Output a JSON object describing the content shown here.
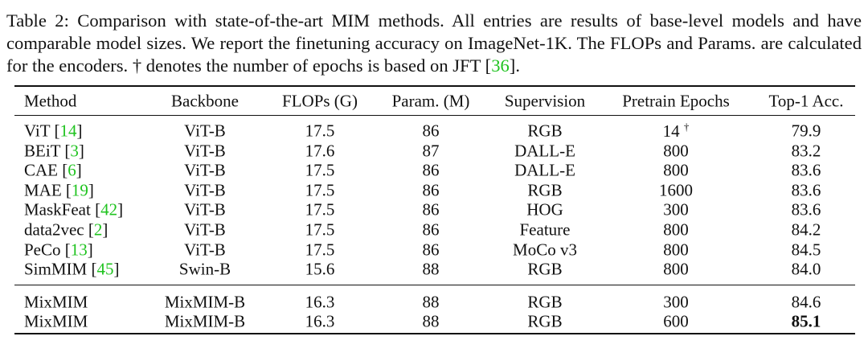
{
  "caption": {
    "label": "Table 2:",
    "text_before": "Comparison with state-of-the-art MIM methods. All entries are results of base-level models and have comparable model sizes. We report the finetuning accuracy on ImageNet-1K. The FLOPs and Params. are calculated for the encoders. † denotes the number of epochs is based on JFT [",
    "ref": "36",
    "text_after": "]."
  },
  "table": {
    "ref_brackets": [
      "[",
      "]"
    ],
    "header": [
      "Method",
      "Backbone",
      "FLOPs (G)",
      "Param. (M)",
      "Supervision",
      "Pretrain Epochs",
      "Top-1 Acc."
    ],
    "groups": [
      [
        {
          "method": "ViT",
          "ref": "14",
          "cells": [
            "ViT-B",
            "17.5",
            "86",
            "RGB",
            "14",
            "79.9"
          ],
          "note": "†"
        },
        {
          "method": "BEiT",
          "ref": "3",
          "cells": [
            "ViT-B",
            "17.6",
            "87",
            "DALL-E",
            "800",
            "83.2"
          ]
        },
        {
          "method": "CAE",
          "ref": "6",
          "cells": [
            "ViT-B",
            "17.5",
            "86",
            "DALL-E",
            "800",
            "83.6"
          ]
        },
        {
          "method": "MAE",
          "ref": "19",
          "cells": [
            "ViT-B",
            "17.5",
            "86",
            "RGB",
            "1600",
            "83.6"
          ]
        },
        {
          "method": "MaskFeat",
          "ref": "42",
          "cells": [
            "ViT-B",
            "17.5",
            "86",
            "HOG",
            "300",
            "83.6"
          ]
        },
        {
          "method": "data2vec",
          "ref": "2",
          "cells": [
            "ViT-B",
            "17.5",
            "86",
            "Feature",
            "800",
            "84.2"
          ]
        },
        {
          "method": "PeCo",
          "ref": "13",
          "cells": [
            "ViT-B",
            "17.5",
            "86",
            "MoCo v3",
            "800",
            "84.5"
          ]
        },
        {
          "method": "SimMIM",
          "ref": "45",
          "cells": [
            "Swin-B",
            "15.6",
            "88",
            "RGB",
            "800",
            "84.0"
          ]
        }
      ],
      [
        {
          "method": "MixMIM",
          "cells": [
            "MixMIM-B",
            "16.3",
            "88",
            "RGB",
            "300",
            "84.6"
          ]
        },
        {
          "method": "MixMIM",
          "cells": [
            "MixMIM-B",
            "16.3",
            "88",
            "RGB",
            "600",
            "85.1"
          ],
          "bold_cells": [
            5
          ]
        }
      ]
    ]
  }
}
